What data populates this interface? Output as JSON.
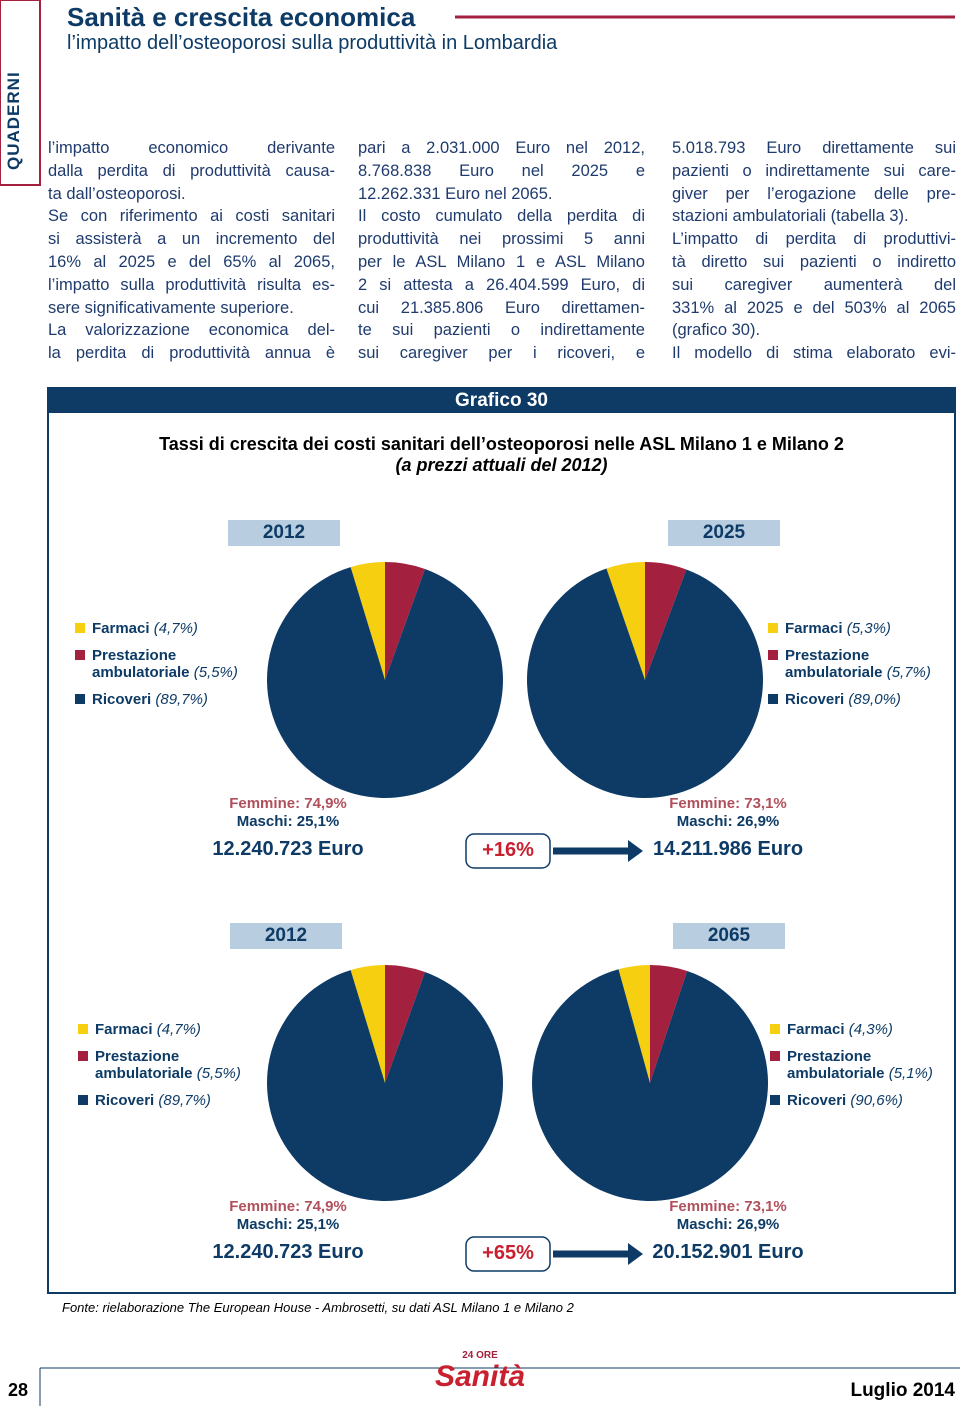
{
  "header": {
    "section": "QUADERNI",
    "title": "Sanità e crescita economica",
    "subtitle": "l’impatto dell’osteoporosi sulla produttività in Lombardia"
  },
  "columns": [
    {
      "paragraphs": [
        {
          "lines": [
            "l’impatto economico derivante",
            "dalla perdita di produttività causa-",
            "ta dall’osteoporosi."
          ]
        },
        {
          "lines": [
            "Se con riferimento ai costi sanitari",
            "si assisterà a un incremento del",
            "16% al 2025 e del 65% al 2065,",
            "l’impatto sulla produttività risulta es-",
            "sere significativamente superiore."
          ]
        },
        {
          "lines": [
            "La valorizzazione economica del-",
            "la perdita di produttività annua è"
          ]
        }
      ]
    },
    {
      "paragraphs": [
        {
          "lines": [
            "pari a 2.031.000 Euro nel 2012,",
            "8.768.838 Euro nel 2025 e",
            "12.262.331 Euro nel 2065."
          ]
        },
        {
          "lines": [
            "Il costo cumulato della perdita di",
            "produttività nei prossimi 5 anni",
            "per le ASL Milano 1 e ASL Milano",
            "2 si attesta a 26.404.599 Euro, di",
            "cui 21.385.806 Euro direttamen-",
            "te sui pazienti o indirettamente",
            "sui caregiver per i ricoveri, e"
          ]
        }
      ]
    },
    {
      "paragraphs": [
        {
          "lines": [
            "5.018.793 Euro direttamente sui",
            "pazienti o indirettamente sui care-",
            "giver per l’erogazione delle pre-",
            "stazioni ambulatoriali (tabella 3)."
          ]
        },
        {
          "lines": [
            "L’impatto di perdita di produttivi-",
            "tà diretto sui pazienti o indiretto",
            "sui caregiver aumenterà del",
            "331% al 2025 e del 503% al 2065",
            "(grafico 30)."
          ]
        },
        {
          "lines": [
            "Il modello di stima elaborato evi-"
          ]
        }
      ]
    }
  ],
  "figure": {
    "label": "Grafico 30",
    "title": "Tassi di crescita dei costi sanitari dell’osteoporosi nelle ASL Milano 1 e Milano 2",
    "subtitle": "(a prezzi attuali del 2012)",
    "comparisons": [
      {
        "from": {
          "femmine": "Femmine: 74,9%",
          "maschi": "Maschi: 25,1%",
          "total": "12.240.723 Euro"
        },
        "to": {
          "femmine": "Femmine: 73,1%",
          "maschi": "Maschi: 26,9%",
          "total": "14.211.986 Euro"
        },
        "growth": "+16%"
      },
      {
        "from": {
          "femmine": "Femmine: 74,9%",
          "maschi": "Maschi: 25,1%",
          "total": "12.240.723 Euro"
        },
        "to": {
          "femmine": "Femmine: 73,1%",
          "maschi": "Maschi: 26,9%",
          "total": "20.152.901 Euro"
        },
        "growth": "+65%"
      }
    ],
    "source": "Fonte: rielaborazione The European House - Ambrosetti, su dati ASL Milano 1 e Milano 2"
  },
  "chart_data": [
    {
      "type": "pie",
      "title": "2012",
      "categories": [
        "Farmaci",
        "Prestazione ambulatoriale",
        "Ricoveri"
      ],
      "values": [
        4.7,
        5.5,
        89.7
      ],
      "value_labels": [
        "(4,7%)",
        "(5,5%)",
        "(89,7%)"
      ],
      "colors": [
        "#f5cf10",
        "#a3203f",
        "#0d3b66"
      ]
    },
    {
      "type": "pie",
      "title": "2025",
      "categories": [
        "Farmaci",
        "Prestazione ambulatoriale",
        "Ricoveri"
      ],
      "values": [
        5.3,
        5.7,
        89.0
      ],
      "value_labels": [
        "(5,3%)",
        "(5,7%)",
        "(89,0%)"
      ],
      "colors": [
        "#f5cf10",
        "#a3203f",
        "#0d3b66"
      ]
    },
    {
      "type": "pie",
      "title": "2012",
      "categories": [
        "Farmaci",
        "Prestazione ambulatoriale",
        "Ricoveri"
      ],
      "values": [
        4.7,
        5.5,
        89.7
      ],
      "value_labels": [
        "(4,7%)",
        "(5,5%)",
        "(89,7%)"
      ],
      "colors": [
        "#f5cf10",
        "#a3203f",
        "#0d3b66"
      ]
    },
    {
      "type": "pie",
      "title": "2065",
      "categories": [
        "Farmaci",
        "Prestazione ambulatoriale",
        "Ricoveri"
      ],
      "values": [
        4.3,
        5.1,
        90.6
      ],
      "value_labels": [
        "(4,3%)",
        "(5,1%)",
        "(90,6%)"
      ],
      "colors": [
        "#f5cf10",
        "#a3203f",
        "#0d3b66"
      ]
    }
  ],
  "footer": {
    "page": "28",
    "logo_top": "24 ORE",
    "logo": "Sanità",
    "date": "Luglio 2014"
  }
}
